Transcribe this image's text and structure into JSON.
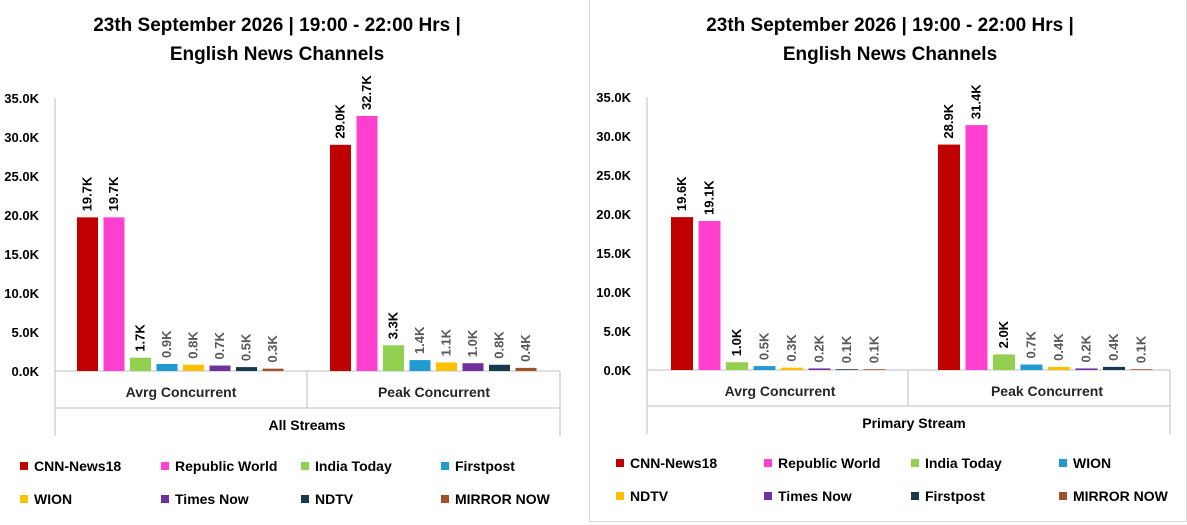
{
  "chart_data": [
    {
      "type": "bar",
      "title_line1": "23th September 2026 | 19:00 - 22:00 Hrs |",
      "title_line2": "English News Channels",
      "group_label": "All Streams",
      "categories": [
        "Avrg Concurrent",
        "Peak Concurrent"
      ],
      "ylim": [
        0,
        35000
      ],
      "yticks": [
        "0.0K",
        "5.0K",
        "10.0K",
        "15.0K",
        "20.0K",
        "25.0K",
        "30.0K",
        "35.0K"
      ],
      "legend_position": "bottom",
      "series": [
        {
          "name": "CNN-News18",
          "color": "#c00000",
          "values": [
            19700,
            29000
          ],
          "labels": [
            "19.7K",
            "29.0K"
          ]
        },
        {
          "name": "Republic World",
          "color": "#ff3fcf",
          "values": [
            19700,
            32700
          ],
          "labels": [
            "19.7K",
            "32.7K"
          ]
        },
        {
          "name": "India Today",
          "color": "#92d050",
          "values": [
            1700,
            3300
          ],
          "labels": [
            "1.7K",
            "3.3K"
          ]
        },
        {
          "name": "Firstpost",
          "color": "#1f9bd1",
          "values": [
            900,
            1400
          ],
          "labels": [
            "0.9K",
            "1.4K"
          ]
        },
        {
          "name": "WION",
          "color": "#ffc000",
          "values": [
            800,
            1100
          ],
          "labels": [
            "0.8K",
            "1.1K"
          ]
        },
        {
          "name": "Times Now",
          "color": "#7030a0",
          "values": [
            700,
            1000
          ],
          "labels": [
            "0.7K",
            "1.0K"
          ]
        },
        {
          "name": "NDTV",
          "color": "#17394d",
          "values": [
            500,
            800
          ],
          "labels": [
            "0.5K",
            "0.8K"
          ]
        },
        {
          "name": "MIRROR NOW",
          "color": "#a0522d",
          "values": [
            300,
            400
          ],
          "labels": [
            "0.3K",
            "0.4K"
          ]
        }
      ]
    },
    {
      "type": "bar",
      "title_line1": "23th September 2026 | 19:00 - 22:00 Hrs |",
      "title_line2": "English News Channels",
      "group_label": "Primary Stream",
      "categories": [
        "Avrg Concurrent",
        "Peak Concurrent"
      ],
      "ylim": [
        0,
        35000
      ],
      "yticks": [
        "0.0K",
        "5.0K",
        "10.0K",
        "15.0K",
        "20.0K",
        "25.0K",
        "30.0K",
        "35.0K"
      ],
      "legend_position": "bottom",
      "series": [
        {
          "name": "CNN-News18",
          "color": "#c00000",
          "values": [
            19600,
            28900
          ],
          "labels": [
            "19.6K",
            "28.9K"
          ]
        },
        {
          "name": "Republic World",
          "color": "#ff3fcf",
          "values": [
            19100,
            31400
          ],
          "labels": [
            "19.1K",
            "31.4K"
          ]
        },
        {
          "name": "India Today",
          "color": "#92d050",
          "values": [
            1000,
            2000
          ],
          "labels": [
            "1.0K",
            "2.0K"
          ]
        },
        {
          "name": "WION",
          "color": "#1f9bd1",
          "values": [
            500,
            700
          ],
          "labels": [
            "0.5K",
            "0.7K"
          ]
        },
        {
          "name": "NDTV",
          "color": "#ffc000",
          "values": [
            300,
            400
          ],
          "labels": [
            "0.3K",
            "0.4K"
          ]
        },
        {
          "name": "Times Now",
          "color": "#7030a0",
          "values": [
            200,
            200
          ],
          "labels": [
            "0.2K",
            "0.2K"
          ]
        },
        {
          "name": "Firstpost",
          "color": "#17394d",
          "values": [
            100,
            400
          ],
          "labels": [
            "0.1K",
            "0.4K"
          ]
        },
        {
          "name": "MIRROR NOW",
          "color": "#a0522d",
          "values": [
            100,
            100
          ],
          "labels": [
            "0.1K",
            "0.1K"
          ]
        }
      ]
    }
  ]
}
